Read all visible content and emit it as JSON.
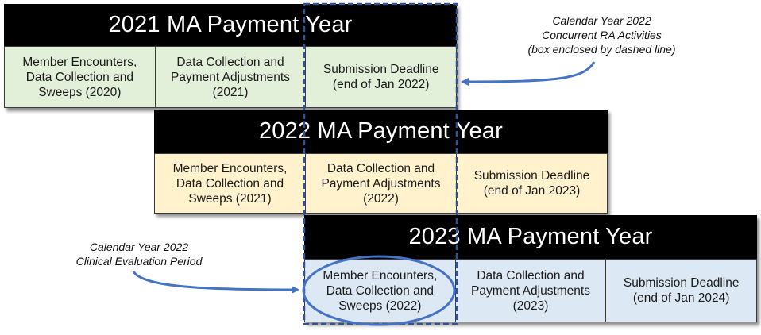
{
  "blocks": [
    {
      "title": "2021 MA Payment Year",
      "cells": [
        "Member Encounters,\nData Collection and\nSweeps (2020)",
        "Data Collection and\nPayment Adjustments\n(2021)",
        "Submission Deadline\n(end of Jan 2022)"
      ]
    },
    {
      "title": "2022 MA Payment Year",
      "cells": [
        "Member Encounters,\nData Collection and\nSweeps (2021)",
        "Data Collection and\nPayment Adjustments\n(2022)",
        "Submission Deadline\n(end of Jan 2023)"
      ]
    },
    {
      "title": "2023 MA Payment Year",
      "cells": [
        "Member Encounters,\nData Collection and\nSweeps (2022)",
        "Data Collection and\nPayment Adjustments\n(2023)",
        "Submission Deadline\n(end of Jan 2024)"
      ]
    }
  ],
  "annotations": {
    "concurrent_ra": "Calendar Year 2022\nConcurrent RA Activities\n(box enclosed by dashed line)",
    "clinical_eval": "Calendar Year 2022\nClinical Evaluation Period"
  },
  "colors": {
    "header": "#000000",
    "py2021_cell": "#e2efd9",
    "py2022_cell": "#fff2cc",
    "py2023_cell": "#dde8f5",
    "accent_blue": "#4472c4"
  }
}
